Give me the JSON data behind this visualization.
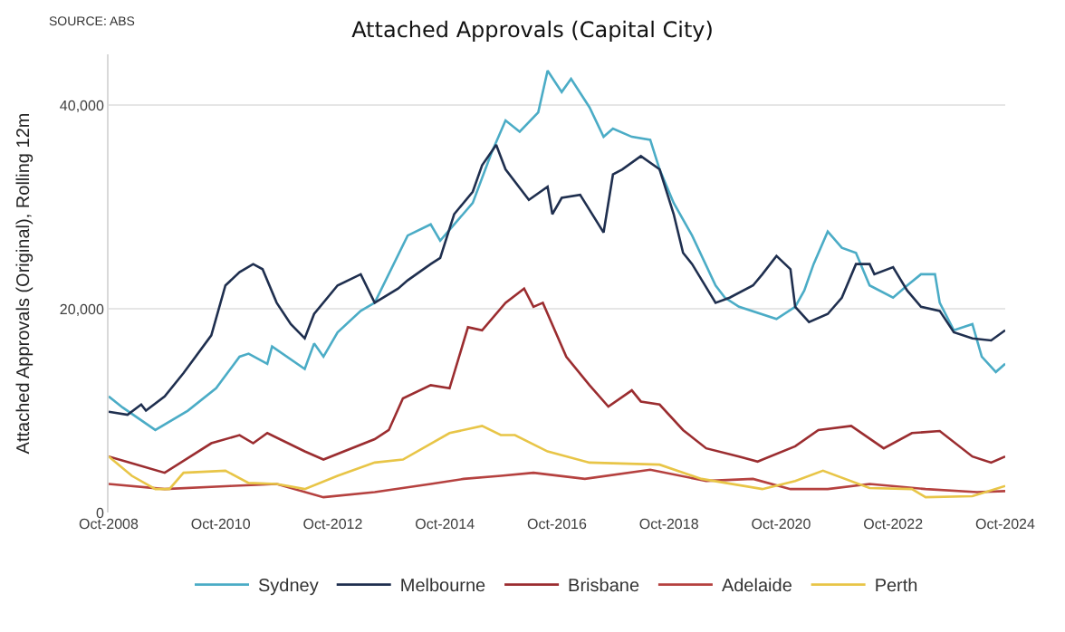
{
  "chart_data": {
    "type": "line",
    "title": "Attached Approvals (Capital City)",
    "ylabel": "Attached Approvals (Original), Rolling 12m",
    "annotations": [
      "SOURCE: ABS"
    ],
    "xlim": [
      "2008-10",
      "2024-10"
    ],
    "xticks": [
      {
        "value": "2008-10",
        "label": "Oct-2008"
      },
      {
        "value": "2010-10",
        "label": "Oct-2010"
      },
      {
        "value": "2012-10",
        "label": "Oct-2012"
      },
      {
        "value": "2014-10",
        "label": "Oct-2014"
      },
      {
        "value": "2016-10",
        "label": "Oct-2016"
      },
      {
        "value": "2018-10",
        "label": "Oct-2018"
      },
      {
        "value": "2020-10",
        "label": "Oct-2020"
      },
      {
        "value": "2022-10",
        "label": "Oct-2022"
      },
      {
        "value": "2024-10",
        "label": "Oct-2024"
      }
    ],
    "ylim": [
      0,
      45000
    ],
    "yticks": [
      0,
      {
        "value": 20000,
        "label": "20,000"
      },
      {
        "value": 40000,
        "label": "40,000"
      }
    ],
    "grid": "y",
    "legend": "bottom",
    "marker": "none",
    "line_style": "solid",
    "series": [
      {
        "name": "Sydney",
        "color": "#4bacc6",
        "x": [
          "2008-10",
          "2009-01",
          "2009-08",
          "2010-03",
          "2010-09",
          "2011-02",
          "2011-04",
          "2011-08",
          "2011-09",
          "2012-04",
          "2012-06",
          "2012-08",
          "2012-11",
          "2013-04",
          "2013-07",
          "2014-02",
          "2014-07",
          "2014-09",
          "2015-04",
          "2015-08",
          "2015-11",
          "2016-02",
          "2016-06",
          "2016-08",
          "2016-11",
          "2017-01",
          "2017-05",
          "2017-08",
          "2017-10",
          "2018-02",
          "2018-06",
          "2018-08",
          "2018-11",
          "2019-03",
          "2019-08",
          "2019-10",
          "2020-01",
          "2020-09",
          "2021-01",
          "2021-03",
          "2021-05",
          "2021-08",
          "2021-11",
          "2022-02",
          "2022-05",
          "2022-10",
          "2023-01",
          "2023-04",
          "2023-07",
          "2023-08",
          "2023-11",
          "2024-03",
          "2024-05",
          "2024-08",
          "2024-10"
        ],
        "values": [
          11400,
          10300,
          8100,
          10000,
          12200,
          15300,
          15600,
          14600,
          16300,
          14100,
          16600,
          15300,
          17700,
          19800,
          20600,
          27200,
          28300,
          26700,
          30400,
          35300,
          38500,
          37400,
          39300,
          43400,
          41300,
          42600,
          39800,
          36900,
          37700,
          36900,
          36600,
          33700,
          30400,
          27200,
          22300,
          21100,
          20200,
          19000,
          20200,
          21800,
          24400,
          27600,
          26000,
          25500,
          22300,
          21100,
          22300,
          23400,
          23400,
          20600,
          17900,
          18500,
          15300,
          13800,
          14600
        ]
      },
      {
        "name": "Melbourne",
        "color": "#1f2f4f",
        "x": [
          "2008-10",
          "2009-02",
          "2009-05",
          "2009-06",
          "2009-10",
          "2010-02",
          "2010-08",
          "2010-11",
          "2011-02",
          "2011-05",
          "2011-07",
          "2011-10",
          "2012-01",
          "2012-04",
          "2012-06",
          "2012-11",
          "2013-04",
          "2013-07",
          "2013-12",
          "2014-02",
          "2014-07",
          "2014-09",
          "2014-12",
          "2015-04",
          "2015-06",
          "2015-09",
          "2015-11",
          "2016-04",
          "2016-08",
          "2016-09",
          "2016-11",
          "2017-03",
          "2017-08",
          "2017-10",
          "2017-12",
          "2018-04",
          "2018-08",
          "2018-11",
          "2019-01",
          "2019-03",
          "2019-08",
          "2019-11",
          "2020-04",
          "2020-06",
          "2020-09",
          "2020-12",
          "2021-01",
          "2021-04",
          "2021-08",
          "2021-11",
          "2022-02",
          "2022-05",
          "2022-06",
          "2022-10",
          "2023-01",
          "2023-04",
          "2023-08",
          "2023-11",
          "2024-03",
          "2024-07",
          "2024-10"
        ],
        "values": [
          9900,
          9600,
          10600,
          10000,
          11400,
          13700,
          17400,
          22300,
          23600,
          24400,
          23900,
          20600,
          18500,
          17100,
          19500,
          22300,
          23400,
          20600,
          22000,
          22800,
          24400,
          25000,
          29300,
          31500,
          34100,
          36100,
          33700,
          30700,
          32000,
          29300,
          30900,
          31200,
          27500,
          33200,
          33700,
          35000,
          33700,
          29300,
          25500,
          24400,
          20600,
          21100,
          22300,
          23400,
          25200,
          23900,
          20200,
          18700,
          19500,
          21100,
          24400,
          24400,
          23400,
          24100,
          21800,
          20200,
          19800,
          17700,
          17100,
          16900,
          17900
        ]
      },
      {
        "name": "Brisbane",
        "color": "#9b2d30",
        "x": [
          "2008-10",
          "2009-10",
          "2010-08",
          "2011-02",
          "2011-05",
          "2011-08",
          "2012-04",
          "2012-08",
          "2013-07",
          "2013-10",
          "2014-01",
          "2014-07",
          "2014-11",
          "2015-03",
          "2015-06",
          "2015-11",
          "2016-03",
          "2016-05",
          "2016-07",
          "2016-12",
          "2017-05",
          "2017-09",
          "2018-02",
          "2018-04",
          "2018-08",
          "2019-01",
          "2019-06",
          "2020-01",
          "2020-05",
          "2021-01",
          "2021-06",
          "2022-01",
          "2022-08",
          "2023-02",
          "2023-08",
          "2024-03",
          "2024-07",
          "2024-10"
        ],
        "values": [
          5500,
          3900,
          6800,
          7600,
          6800,
          7800,
          6000,
          5200,
          7200,
          8100,
          11200,
          12500,
          12200,
          18200,
          17900,
          20600,
          22000,
          20200,
          20600,
          15300,
          12500,
          10400,
          12000,
          10900,
          10600,
          8100,
          6300,
          5500,
          5000,
          6500,
          8100,
          8500,
          6300,
          7800,
          8000,
          5500,
          4900,
          5500
        ]
      },
      {
        "name": "Adelaide",
        "color": "#b5413f",
        "x": [
          "2008-10",
          "2009-10",
          "2010-12",
          "2011-10",
          "2012-08",
          "2013-07",
          "2014-07",
          "2015-02",
          "2015-10",
          "2016-05",
          "2017-04",
          "2018-06",
          "2019-06",
          "2020-04",
          "2020-12",
          "2021-08",
          "2022-05",
          "2023-05",
          "2024-04",
          "2024-10"
        ],
        "values": [
          2800,
          2300,
          2600,
          2800,
          1500,
          2000,
          2800,
          3300,
          3600,
          3900,
          3300,
          4200,
          3100,
          3300,
          2300,
          2300,
          2800,
          2300,
          2000,
          2100
        ]
      },
      {
        "name": "Perth",
        "color": "#e8c547",
        "x": [
          "2008-10",
          "2009-03",
          "2009-08",
          "2009-11",
          "2010-02",
          "2010-11",
          "2011-04",
          "2011-10",
          "2012-04",
          "2012-11",
          "2013-07",
          "2014-01",
          "2014-11",
          "2015-06",
          "2015-10",
          "2016-01",
          "2016-08",
          "2017-05",
          "2018-08",
          "2019-05",
          "2020-06",
          "2021-01",
          "2021-07",
          "2022-05",
          "2023-02",
          "2023-05",
          "2024-03",
          "2024-10"
        ],
        "values": [
          5500,
          3600,
          2300,
          2300,
          3900,
          4100,
          2900,
          2800,
          2300,
          3600,
          4900,
          5200,
          7800,
          8500,
          7600,
          7600,
          6000,
          4900,
          4700,
          3300,
          2300,
          3100,
          4100,
          2400,
          2300,
          1500,
          1600,
          2600
        ]
      }
    ]
  }
}
